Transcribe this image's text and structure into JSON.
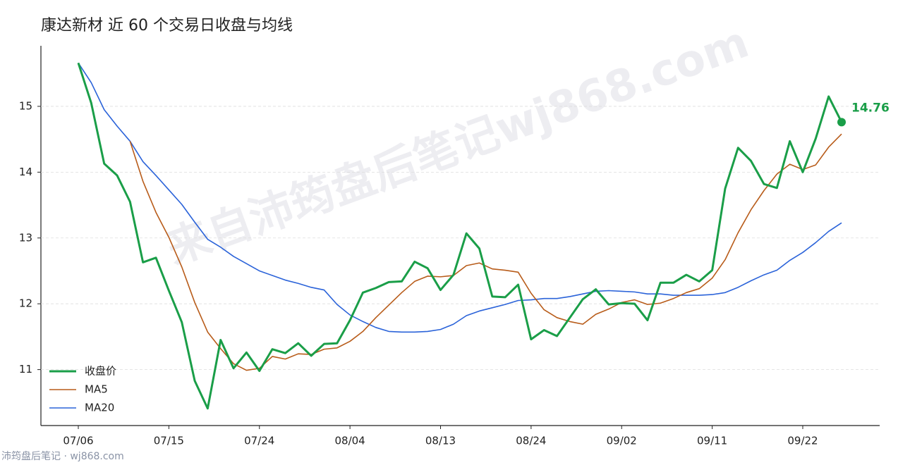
{
  "chart_data": {
    "type": "line",
    "title": "康达新材 近 60 个交易日收盘与均线",
    "watermark": "来自沛筠盘后笔记wj868.com",
    "source": "沛筠盘后笔记 · wj868.com",
    "categories": [
      "07/06",
      null,
      null,
      null,
      null,
      null,
      null,
      "07/15",
      null,
      null,
      null,
      null,
      null,
      null,
      "07/24",
      null,
      null,
      null,
      null,
      null,
      null,
      "08/04",
      null,
      null,
      null,
      null,
      null,
      null,
      "08/13",
      null,
      null,
      null,
      null,
      null,
      null,
      "08/24",
      null,
      null,
      null,
      null,
      null,
      null,
      "09/02",
      null,
      null,
      null,
      null,
      null,
      null,
      "09/11",
      null,
      null,
      null,
      null,
      null,
      null,
      "09/22",
      null,
      null,
      null
    ],
    "series": [
      {
        "name": "收盘价",
        "color": "#1a9e48",
        "width": 3,
        "values": [
          15.66,
          15.05,
          14.13,
          13.95,
          13.55,
          12.63,
          12.7,
          12.2,
          11.72,
          10.83,
          10.41,
          11.45,
          11.02,
          11.26,
          10.98,
          11.31,
          11.25,
          11.4,
          11.21,
          11.39,
          11.4,
          11.75,
          12.17,
          12.24,
          12.33,
          12.34,
          12.64,
          12.54,
          12.21,
          12.44,
          13.07,
          12.84,
          12.11,
          12.1,
          12.29,
          11.46,
          11.6,
          11.51,
          11.79,
          12.07,
          12.22,
          11.99,
          12.01,
          12.0,
          11.75,
          12.32,
          12.32,
          12.44,
          12.34,
          12.51,
          13.75,
          14.37,
          14.17,
          13.82,
          13.76,
          14.47,
          14.0,
          14.51,
          15.15,
          14.76
        ]
      },
      {
        "name": "MA5",
        "color": "#b85c1a",
        "width": 1.6,
        "values": [
          null,
          null,
          null,
          null,
          14.47,
          13.86,
          13.39,
          13.01,
          12.56,
          12.02,
          11.57,
          11.32,
          11.09,
          10.99,
          11.02,
          11.2,
          11.16,
          11.24,
          11.23,
          11.31,
          11.33,
          11.43,
          11.58,
          11.79,
          11.98,
          12.17,
          12.34,
          12.42,
          12.41,
          12.43,
          12.58,
          12.62,
          12.53,
          12.51,
          12.48,
          12.16,
          11.91,
          11.79,
          11.73,
          11.69,
          11.84,
          11.92,
          12.02,
          12.06,
          11.99,
          12.01,
          12.08,
          12.17,
          12.23,
          12.39,
          12.67,
          13.08,
          13.43,
          13.72,
          13.97,
          14.12,
          14.04,
          14.11,
          14.38,
          14.58
        ]
      },
      {
        "name": "MA20",
        "color": "#2b63d9",
        "width": 1.6,
        "values": [
          15.66,
          15.36,
          14.95,
          14.7,
          14.47,
          14.16,
          13.95,
          13.73,
          13.51,
          13.24,
          12.98,
          12.86,
          12.72,
          12.61,
          12.5,
          12.43,
          12.36,
          12.31,
          12.25,
          12.21,
          11.99,
          11.83,
          11.73,
          11.64,
          11.58,
          11.57,
          11.57,
          11.58,
          11.61,
          11.69,
          11.82,
          11.89,
          11.94,
          11.99,
          12.05,
          12.06,
          12.08,
          12.08,
          12.11,
          12.15,
          12.19,
          12.2,
          12.19,
          12.18,
          12.15,
          12.15,
          12.13,
          12.13,
          12.13,
          12.14,
          12.17,
          12.25,
          12.35,
          12.44,
          12.51,
          12.66,
          12.78,
          12.93,
          13.1,
          13.23
        ]
      }
    ],
    "ylim": [
      10.15,
      15.92
    ],
    "yticks": [
      11,
      12,
      13,
      14,
      15
    ],
    "grid": true,
    "legend": "lower left"
  }
}
